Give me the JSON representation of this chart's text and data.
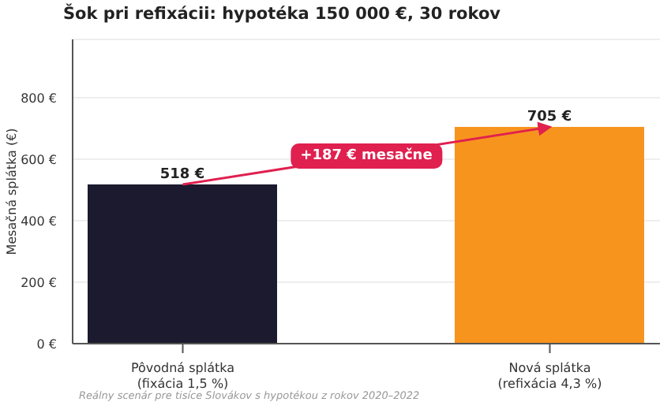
{
  "chart_data": {
    "type": "bar",
    "title": "Šok pri refixácii: hypotéka 150 000 €, 30 rokov",
    "ylabel": "Mesačná splátka (€)",
    "categories": [
      "Pôvodná splátka\n(fixácia 1,5 %)",
      "Nová splátka\n(refixácia 4,3 %)"
    ],
    "values": [
      518,
      705
    ],
    "colors": [
      "#1c1a2e",
      "#f7941d"
    ],
    "value_labels": [
      "518 €",
      "705 €"
    ],
    "ylim": [
      0,
      990
    ],
    "yticks": [
      {
        "value": 0,
        "label": "0 €"
      },
      {
        "value": 200,
        "label": "200 €"
      },
      {
        "value": 400,
        "label": "400 €"
      },
      {
        "value": 600,
        "label": "600 €"
      },
      {
        "value": 800,
        "label": "800 €"
      }
    ],
    "grid": "y",
    "annotations": [
      "+187 € mesačne",
      "Reálny scenár pre tisíce Slovákov s hypotékou z rokov 2020–2022"
    ]
  }
}
